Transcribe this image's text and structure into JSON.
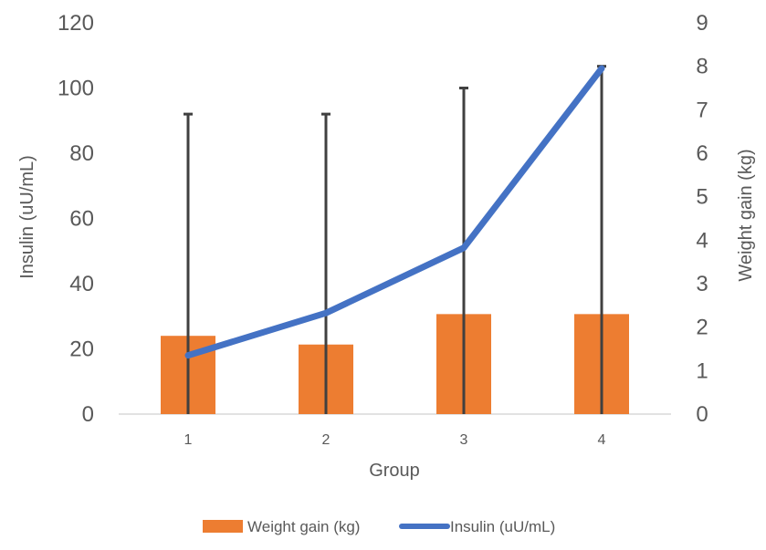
{
  "chart_data": {
    "type": "bar+line",
    "categories": [
      "1",
      "2",
      "3",
      "4"
    ],
    "xlabel": "Group",
    "y_left": {
      "label": "Insulin (uU/mL)",
      "range": [
        0,
        120
      ],
      "ticks": [
        "0",
        "20",
        "40",
        "60",
        "80",
        "100",
        "120"
      ]
    },
    "y_right": {
      "label": "Weight gain (kg)",
      "range": [
        0,
        9
      ],
      "ticks": [
        "0",
        "1",
        "2",
        "3",
        "4",
        "5",
        "6",
        "7",
        "8",
        "9"
      ]
    },
    "series": [
      {
        "name": "Weight gain (kg)",
        "type": "bar",
        "axis": "right",
        "color": "#ED7D31",
        "values": [
          1.8,
          1.6,
          2.3,
          2.3
        ],
        "error_upper": [
          6.9,
          6.9,
          7.5,
          8.0
        ]
      },
      {
        "name": "Insulin (uU/mL)",
        "type": "line",
        "axis": "left",
        "color": "#4472C4",
        "values": [
          18,
          31,
          51,
          106
        ]
      }
    ],
    "grid": false,
    "legend": "bottom"
  }
}
